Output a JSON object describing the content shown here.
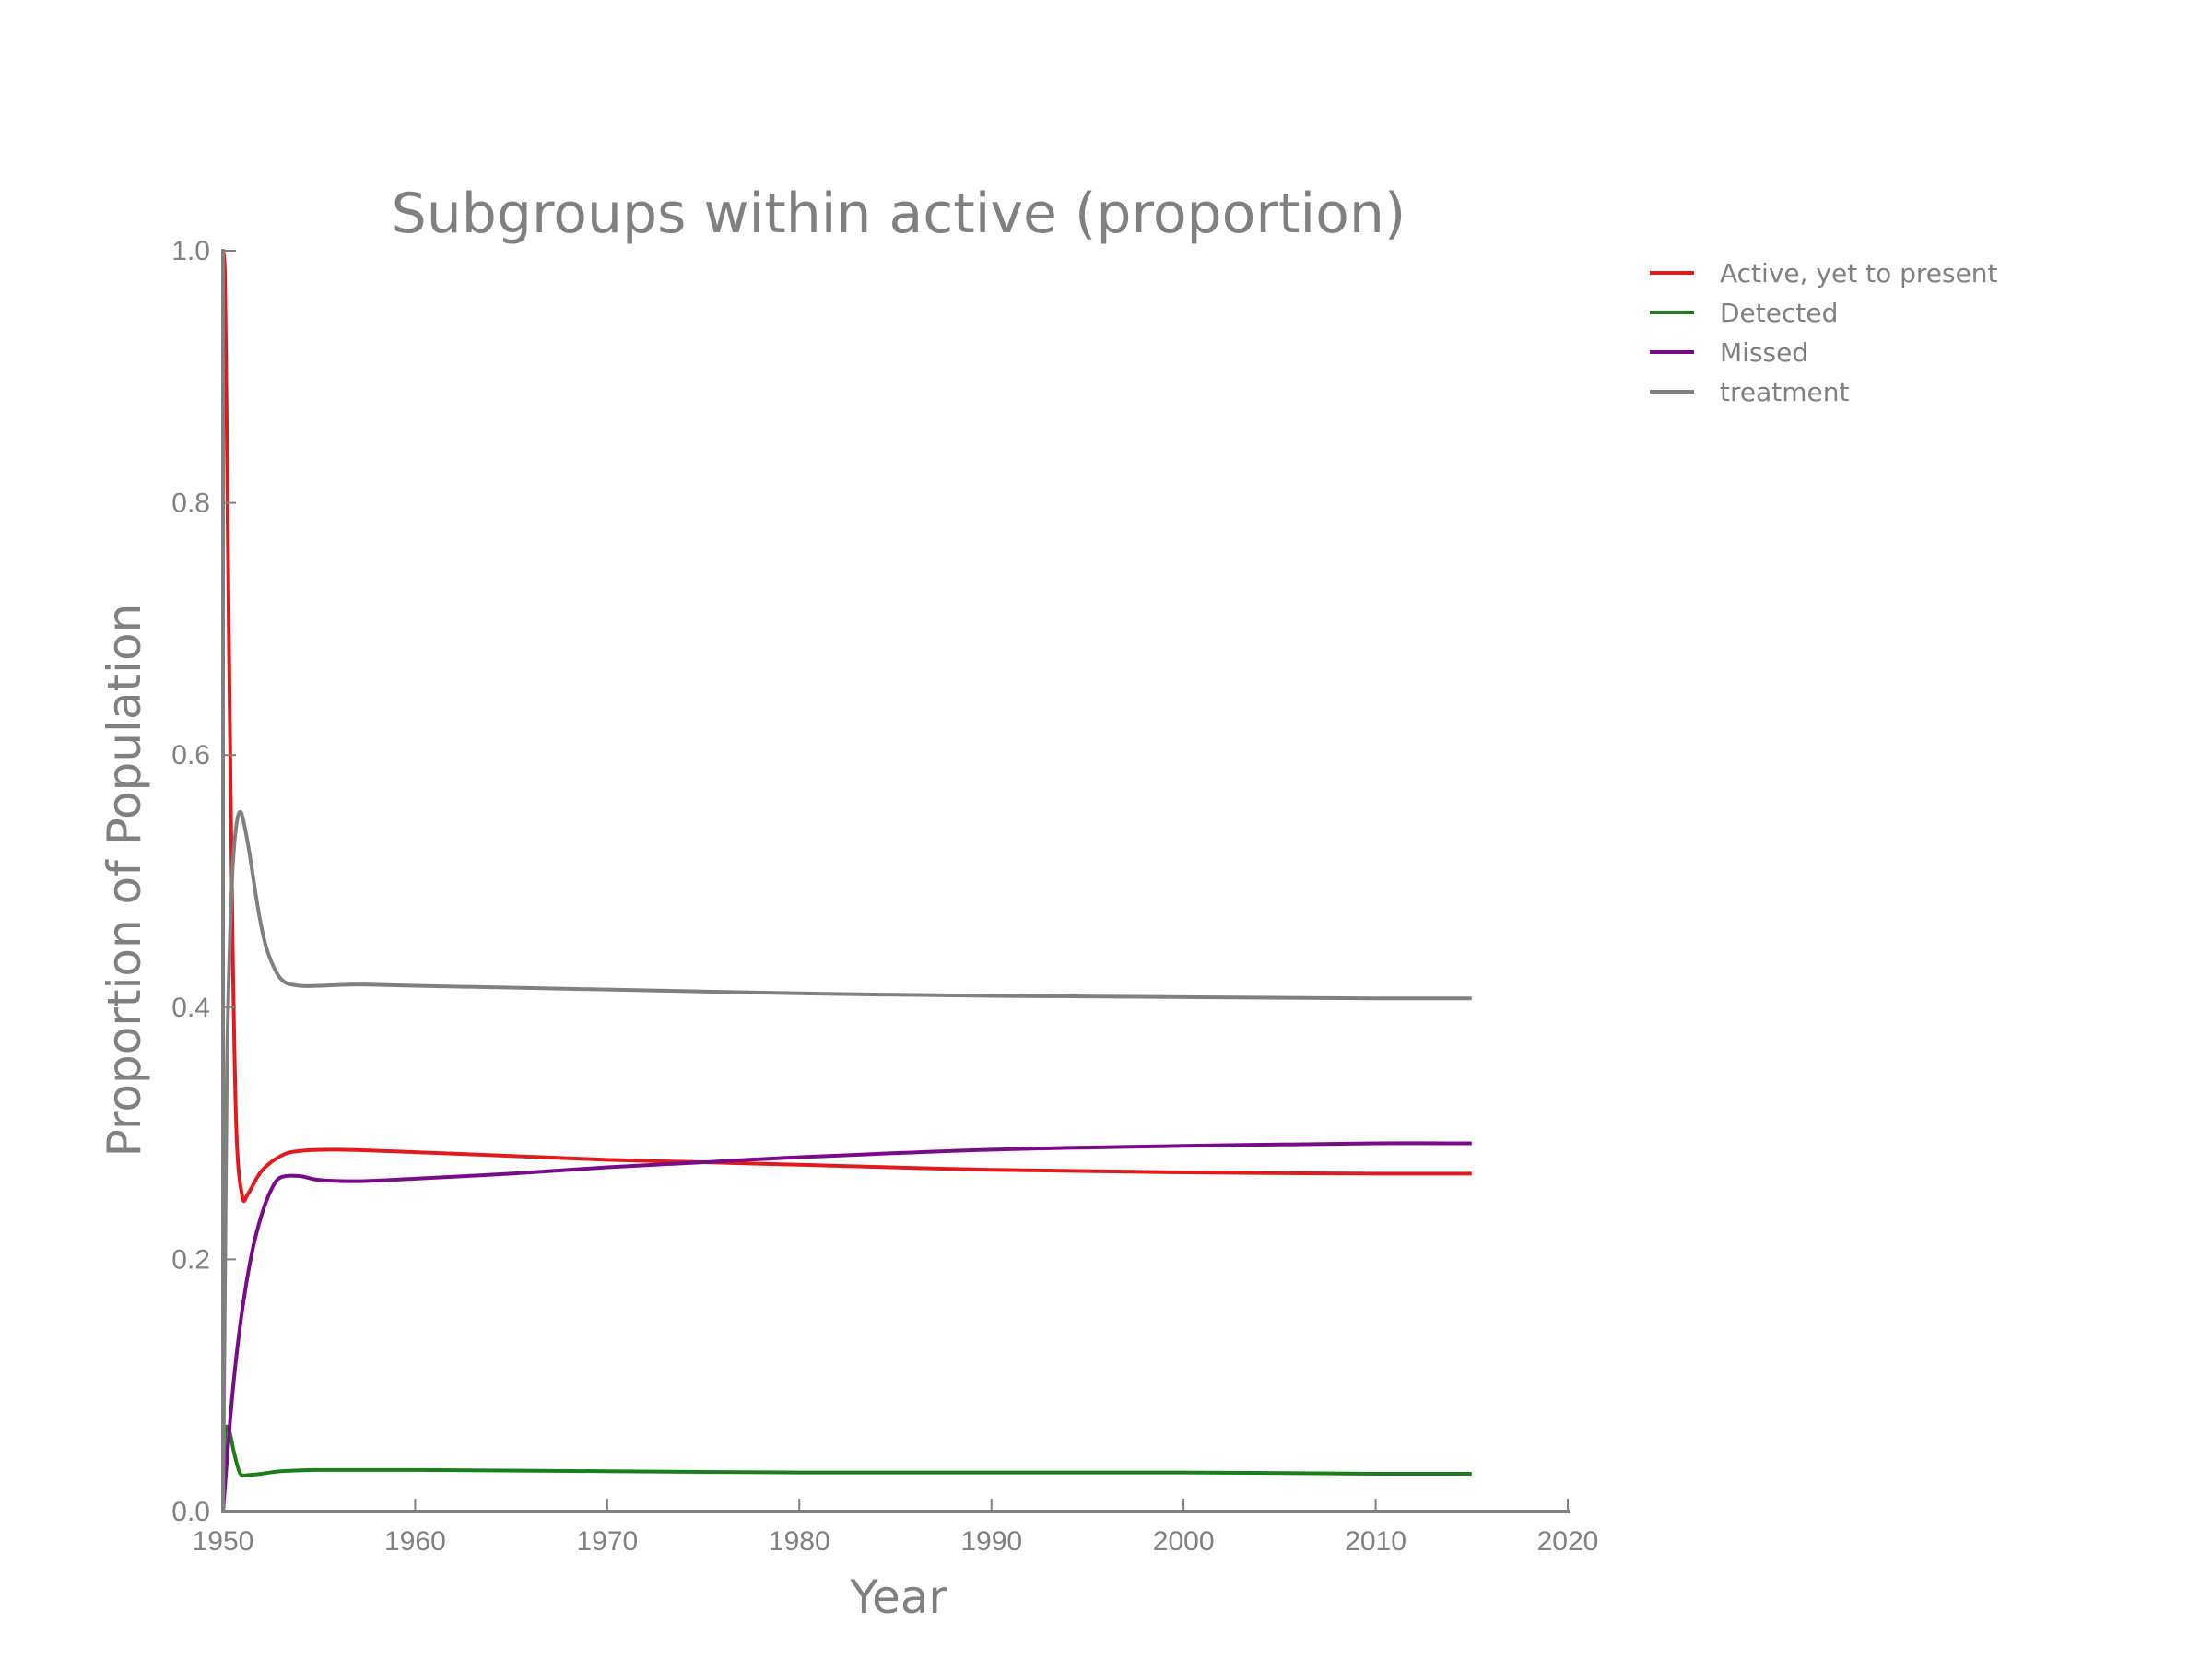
{
  "chart_data": {
    "type": "line",
    "title": "Subgroups within active (proportion)",
    "xlabel": "Year",
    "ylabel": "Proportion of Population",
    "xlim": [
      1950,
      2020
    ],
    "ylim": [
      0.0,
      1.0
    ],
    "xticks": [
      "1950",
      "1960",
      "1970",
      "1980",
      "1990",
      "2000",
      "2010",
      "2020"
    ],
    "yticks": [
      "0.0",
      "0.2",
      "0.4",
      "0.6",
      "0.8",
      "1.0"
    ],
    "grid": false,
    "legend_position": "outside-right",
    "series": [
      {
        "name": "Active, yet to present",
        "color": "#e31a1c",
        "x": [
          1950,
          1950.1,
          1950.2,
          1950.3,
          1950.5,
          1950.7,
          1951,
          1951.3,
          1952,
          1953,
          1954,
          1956,
          1960,
          1965,
          1970,
          1975,
          1980,
          1990,
          2000,
          2010,
          2015
        ],
        "y": [
          1.0,
          0.98,
          0.85,
          0.7,
          0.45,
          0.3,
          0.25,
          0.252,
          0.27,
          0.282,
          0.286,
          0.287,
          0.285,
          0.282,
          0.279,
          0.277,
          0.275,
          0.271,
          0.269,
          0.268,
          0.268
        ]
      },
      {
        "name": "Detected",
        "color": "#1a7f1a",
        "x": [
          1950,
          1950.1,
          1950.3,
          1950.6,
          1950.9,
          1951.3,
          1952,
          1953,
          1955,
          1960,
          1970,
          1980,
          1990,
          2000,
          2010,
          2015
        ],
        "y": [
          0.0,
          0.06,
          0.065,
          0.045,
          0.03,
          0.029,
          0.03,
          0.032,
          0.033,
          0.033,
          0.032,
          0.031,
          0.031,
          0.031,
          0.03,
          0.03
        ]
      },
      {
        "name": "Missed",
        "color": "#7a0a8a",
        "x": [
          1950,
          1950.1,
          1950.3,
          1950.6,
          1951,
          1951.5,
          1952,
          1952.5,
          1953,
          1954,
          1955,
          1957,
          1960,
          1965,
          1970,
          1975,
          1980,
          1990,
          2000,
          2010,
          2015
        ],
        "y": [
          0.0,
          0.02,
          0.06,
          0.11,
          0.16,
          0.205,
          0.235,
          0.255,
          0.265,
          0.266,
          0.263,
          0.262,
          0.264,
          0.268,
          0.273,
          0.277,
          0.281,
          0.287,
          0.29,
          0.292,
          0.292
        ]
      },
      {
        "name": "treatment",
        "color": "#808080",
        "x": [
          1950,
          1950.1,
          1950.2,
          1950.35,
          1950.5,
          1950.7,
          1950.9,
          1951.1,
          1951.4,
          1951.8,
          1952.2,
          1952.7,
          1953.2,
          1954,
          1955,
          1957,
          1960,
          1970,
          1980,
          1990,
          2000,
          2010,
          2015
        ],
        "y": [
          0.0,
          0.18,
          0.35,
          0.45,
          0.51,
          0.545,
          0.555,
          0.545,
          0.52,
          0.48,
          0.45,
          0.43,
          0.42,
          0.417,
          0.417,
          0.418,
          0.417,
          0.414,
          0.411,
          0.409,
          0.408,
          0.407,
          0.407
        ]
      }
    ]
  }
}
